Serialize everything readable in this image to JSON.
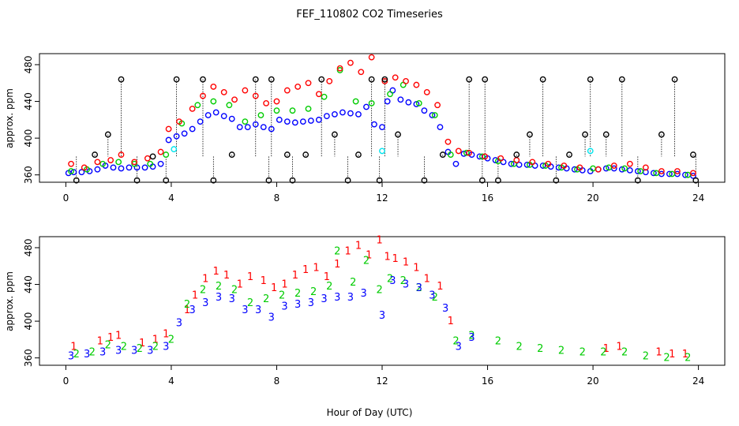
{
  "chart_data": {
    "title": "FEF_110802  CO2 Timeseries",
    "xlabel": "Hour of Day (UTC)",
    "x_ticks": [
      0,
      4,
      8,
      12,
      16,
      20,
      24
    ],
    "y_ticks": [
      360,
      400,
      440,
      480
    ],
    "colors": {
      "level1": "#ff0000",
      "level2": "#00cc00",
      "level3": "#0000ff",
      "black": "#000000",
      "cyan": "#00e5ee"
    },
    "panels": [
      {
        "type": "scatter",
        "ylabel": "approx. ppm",
        "xlim": [
          -1,
          25
        ],
        "ylim": [
          352,
          492
        ],
        "marker": "circle",
        "series": [
          {
            "name": "level 3 (blue)",
            "color": "#0000ff",
            "x": [
              0.1,
              0.3,
              0.6,
              0.9,
              1.2,
              1.5,
              1.8,
              2.1,
              2.4,
              2.7,
              3.0,
              3.3,
              3.6,
              3.9,
              4.2,
              4.5,
              4.8,
              5.1,
              5.4,
              5.7,
              6.0,
              6.3,
              6.6,
              6.9,
              7.2,
              7.5,
              7.8,
              8.1,
              8.4,
              8.7,
              9.0,
              9.3,
              9.6,
              9.9,
              10.2,
              10.5,
              10.8,
              11.1,
              11.4,
              11.7,
              12.0,
              12.2,
              12.4,
              12.7,
              13.0,
              13.3,
              13.6,
              13.9,
              14.2,
              14.5,
              14.8,
              15.1,
              15.4,
              15.7,
              16.0,
              16.3,
              16.6,
              16.9,
              17.2,
              17.5,
              17.8,
              18.1,
              18.4,
              18.7,
              19.0,
              19.3,
              19.6,
              19.9,
              20.2,
              20.5,
              20.8,
              21.1,
              21.4,
              21.7,
              22.0,
              22.3,
              22.6,
              22.9,
              23.2,
              23.5,
              23.8
            ],
            "y": [
              362,
              363,
              363,
              364,
              366,
              370,
              368,
              367,
              368,
              368,
              368,
              369,
              372,
              398,
              402,
              405,
              410,
              418,
              425,
              428,
              424,
              421,
              412,
              412,
              415,
              412,
              410,
              420,
              418,
              417,
              418,
              419,
              420,
              424,
              426,
              428,
              427,
              426,
              434,
              415,
              412,
              440,
              452,
              442,
              439,
              437,
              430,
              425,
              412,
              385,
              372,
              383,
              382,
              380,
              378,
              376,
              374,
              372,
              371,
              371,
              370,
              370,
              369,
              368,
              367,
              366,
              365,
              364,
              366,
              367,
              367,
              366,
              365,
              364,
              363,
              362,
              361,
              361,
              361,
              360,
              359
            ]
          },
          {
            "name": "level 2 (green)",
            "color": "#00cc00",
            "x": [
              0.2,
              0.8,
              1.4,
              2.0,
              2.6,
              3.2,
              3.8,
              4.4,
              5.0,
              5.6,
              6.2,
              6.8,
              7.4,
              8.0,
              8.6,
              9.2,
              9.8,
              10.4,
              11.0,
              11.6,
              12.3,
              12.8,
              13.4,
              14.0,
              14.6,
              15.2,
              15.8,
              16.4,
              17.0,
              17.6,
              18.2,
              18.8,
              19.4,
              20.0,
              20.6,
              21.2,
              21.8,
              22.4,
              23.0,
              23.6
            ],
            "y": [
              364,
              366,
              372,
              374,
              372,
              372,
              382,
              416,
              436,
              440,
              436,
              418,
              425,
              430,
              430,
              432,
              445,
              474,
              440,
              438,
              448,
              458,
              438,
              425,
              382,
              384,
              380,
              375,
              372,
              371,
              370,
              368,
              366,
              367,
              368,
              367,
              364,
              362,
              361,
              360
            ]
          },
          {
            "name": "level 1 (red)",
            "color": "#ff0000",
            "x": [
              0.2,
              0.7,
              1.2,
              1.7,
              2.1,
              2.6,
              3.1,
              3.6,
              3.9,
              4.3,
              4.8,
              5.2,
              5.6,
              6.0,
              6.4,
              6.8,
              7.2,
              7.6,
              8.0,
              8.4,
              8.8,
              9.2,
              9.6,
              10.0,
              10.4,
              10.8,
              11.2,
              11.6,
              12.1,
              12.5,
              12.9,
              13.3,
              13.7,
              14.1,
              14.5,
              14.9,
              15.3,
              15.9,
              16.5,
              17.1,
              17.7,
              18.3,
              18.9,
              19.5,
              20.2,
              20.8,
              21.4,
              22.0,
              22.6,
              23.2,
              23.8
            ],
            "y": [
              372,
              368,
              374,
              376,
              382,
              374,
              378,
              385,
              410,
              418,
              432,
              446,
              456,
              450,
              442,
              452,
              446,
              438,
              440,
              452,
              456,
              460,
              448,
              462,
              476,
              482,
              472,
              488,
              462,
              466,
              462,
              458,
              450,
              436,
              396,
              386,
              384,
              380,
              378,
              376,
              374,
              372,
              370,
              368,
              366,
              370,
              372,
              368,
              364,
              364,
              362
            ]
          },
          {
            "name": "reference (black)",
            "color": "#000000",
            "x": [
              0.4,
              1.1,
              1.6,
              2.1,
              2.7,
              3.3,
              3.8,
              4.2,
              5.2,
              5.6,
              6.3,
              7.2,
              7.7,
              7.8,
              8.4,
              8.6,
              9.1,
              9.7,
              10.2,
              10.7,
              11.1,
              11.6,
              11.9,
              12.1,
              12.6,
              13.6,
              14.3,
              15.3,
              15.8,
              15.9,
              16.4,
              17.1,
              17.6,
              18.1,
              18.6,
              19.1,
              19.7,
              19.9,
              20.5,
              21.1,
              21.7,
              22.6,
              23.1,
              23.8,
              23.9
            ],
            "y": [
              354,
              382,
              404,
              464,
              354,
              380,
              354,
              464,
              464,
              354,
              382,
              464,
              354,
              464,
              382,
              354,
              382,
              464,
              404,
              354,
              382,
              464,
              354,
              464,
              404,
              354,
              382,
              464,
              354,
              464,
              354,
              382,
              404,
              464,
              354,
              382,
              404,
              464,
              404,
              464,
              354,
              404,
              464,
              382,
              354
            ]
          },
          {
            "name": "cyan",
            "color": "#00e5ee",
            "x": [
              4.1,
              12.0,
              19.9
            ],
            "y": [
              388,
              386,
              386
            ]
          }
        ]
      },
      {
        "type": "scatter",
        "ylabel": "approx. ppm",
        "xlim": [
          -1,
          25
        ],
        "ylim": [
          352,
          492
        ],
        "marker": "digit",
        "series": [
          {
            "name": "1",
            "color": "#ff0000",
            "x": [
              0.3,
              1.3,
              1.7,
              2.0,
              2.9,
              3.4,
              3.8,
              4.6,
              4.9,
              5.3,
              5.7,
              6.1,
              6.6,
              7.0,
              7.5,
              7.9,
              8.3,
              8.7,
              9.1,
              9.5,
              9.9,
              10.3,
              10.7,
              11.1,
              11.5,
              11.9,
              12.2,
              12.5,
              12.9,
              13.3,
              13.7,
              14.2,
              14.6,
              20.5,
              21.0,
              22.5,
              23.0,
              23.5
            ],
            "y": [
              372,
              378,
              382,
              384,
              376,
              380,
              386,
              412,
              428,
              446,
              454,
              450,
              440,
              448,
              444,
              436,
              440,
              450,
              456,
              458,
              448,
              462,
              476,
              482,
              472,
              488,
              470,
              468,
              464,
              458,
              446,
              438,
              400,
              370,
              372,
              366,
              364,
              364
            ]
          },
          {
            "name": "2",
            "color": "#00cc00",
            "x": [
              0.4,
              1.0,
              1.6,
              2.2,
              2.8,
              3.4,
              4.0,
              4.6,
              5.2,
              5.8,
              6.4,
              7.0,
              7.6,
              8.2,
              8.8,
              9.4,
              10.0,
              10.3,
              10.9,
              11.4,
              11.9,
              12.3,
              12.8,
              13.4,
              14.0,
              14.8,
              15.4,
              16.4,
              17.2,
              18.0,
              18.8,
              19.6,
              20.4,
              21.2,
              22.0,
              22.8,
              23.6
            ],
            "y": [
              364,
              366,
              374,
              372,
              370,
              372,
              380,
              418,
              434,
              438,
              434,
              420,
              424,
              428,
              430,
              432,
              438,
              476,
              442,
              466,
              434,
              446,
              444,
              436,
              426,
              378,
              384,
              378,
              372,
              370,
              368,
              366,
              366,
              366,
              362,
              360,
              360
            ]
          },
          {
            "name": "3",
            "color": "#0000ff",
            "x": [
              0.2,
              0.8,
              1.4,
              2.0,
              2.6,
              3.2,
              3.8,
              4.3,
              4.8,
              5.3,
              5.8,
              6.3,
              6.8,
              7.3,
              7.8,
              8.3,
              8.8,
              9.3,
              9.8,
              10.3,
              10.8,
              11.3,
              12.0,
              12.4,
              12.9,
              13.4,
              13.9,
              14.4,
              14.9,
              15.4
            ],
            "y": [
              362,
              364,
              366,
              368,
              368,
              368,
              372,
              398,
              412,
              420,
              426,
              424,
              412,
              412,
              404,
              416,
              418,
              420,
              424,
              426,
              426,
              430,
              406,
              444,
              440,
              436,
              428,
              414,
              372,
              382
            ]
          }
        ]
      }
    ]
  }
}
